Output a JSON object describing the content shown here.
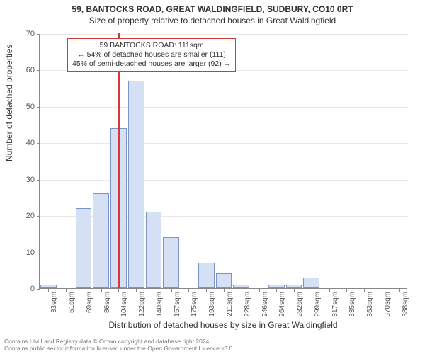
{
  "title_main": "59, BANTOCKS ROAD, GREAT WALDINGFIELD, SUDBURY, CO10 0RT",
  "title_sub": "Size of property relative to detached houses in Great Waldingfield",
  "chart": {
    "type": "histogram",
    "ylim": [
      0,
      70
    ],
    "ytick_step": 10,
    "yticks": [
      0,
      10,
      20,
      30,
      40,
      50,
      60,
      70
    ],
    "ylabel": "Number of detached properties",
    "xlabel": "Distribution of detached houses by size in Great Waldingfield",
    "x_categories": [
      "33sqm",
      "51sqm",
      "69sqm",
      "86sqm",
      "104sqm",
      "122sqm",
      "140sqm",
      "157sqm",
      "175sqm",
      "193sqm",
      "211sqm",
      "228sqm",
      "246sqm",
      "264sqm",
      "282sqm",
      "299sqm",
      "317sqm",
      "335sqm",
      "353sqm",
      "370sqm",
      "388sqm"
    ],
    "bar_values": [
      1,
      0,
      22,
      26,
      44,
      57,
      21,
      14,
      0,
      7,
      4,
      1,
      0,
      1,
      1,
      3,
      0,
      0,
      0,
      0,
      0
    ],
    "bar_fill": "#d6e0f4",
    "bar_stroke": "#7a94c8",
    "grid_color": "#e8e8e8",
    "axis_color": "#888888",
    "background": "#ffffff",
    "label_fontsize": 12,
    "tick_fontsize": 11,
    "marker_line": {
      "position_index": 4.5,
      "color": "#d43838"
    },
    "annotation": {
      "line1": "59 BANTOCKS ROAD: 111sqm",
      "line2": "← 54% of detached houses are smaller (111)",
      "line3": "45% of semi-detached houses are larger (92) →",
      "border_color": "#d43838",
      "fontsize": 10.5
    }
  },
  "footer": {
    "line1": "Contains HM Land Registry data © Crown copyright and database right 2024.",
    "line2": "Contains public sector information licensed under the Open Government Licence v3.0."
  }
}
